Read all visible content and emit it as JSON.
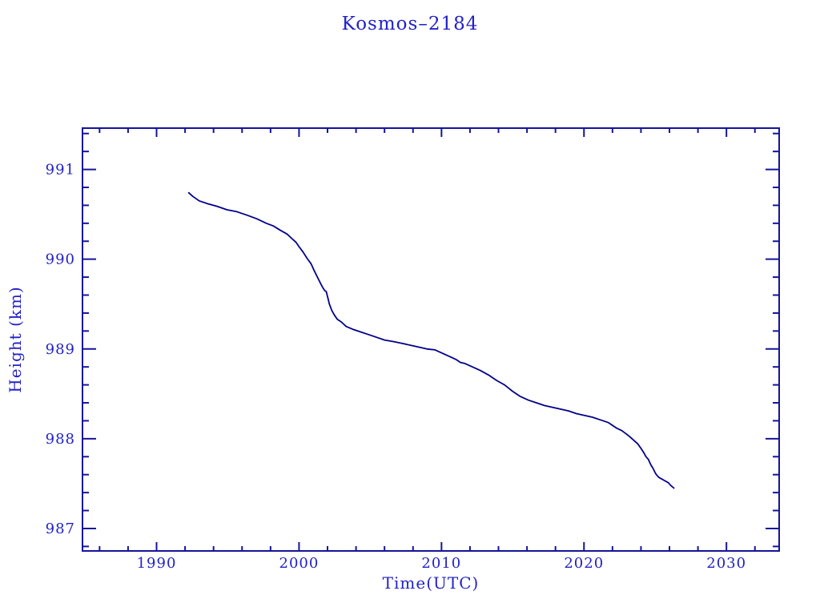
{
  "page": {
    "background": "#ffffff"
  },
  "chart_data": {
    "type": "line",
    "title": "Kosmos–2184",
    "xlabel": "Time(UTC)",
    "ylabel": "Height (km)",
    "xlim": [
      1984.8,
      2033.7
    ],
    "ylim": [
      986.75,
      991.46
    ],
    "x_major_ticks": [
      1990,
      2000,
      2010,
      2020,
      2030
    ],
    "x_minor_step": 2,
    "y_major_ticks": [
      987,
      988,
      989,
      990,
      991
    ],
    "y_minor_step": 0.2,
    "grid": false,
    "legend_position": "none",
    "colors": {
      "curve": "#00008b",
      "axis": "#14149a",
      "text": "#2222c8"
    },
    "series": [
      {
        "name": "orbital-height",
        "points": [
          [
            1992.26,
            990.74
          ],
          [
            1992.54,
            990.7
          ],
          [
            1992.99,
            990.65
          ],
          [
            1993.55,
            990.62
          ],
          [
            1994.22,
            990.59
          ],
          [
            1994.95,
            990.55
          ],
          [
            1995.62,
            990.53
          ],
          [
            1996.35,
            990.49
          ],
          [
            1997.03,
            990.45
          ],
          [
            1997.7,
            990.4
          ],
          [
            1998.2,
            990.37
          ],
          [
            1998.71,
            990.32
          ],
          [
            1999.16,
            990.28
          ],
          [
            1999.5,
            990.23
          ],
          [
            1999.78,
            990.19
          ],
          [
            2000.0,
            990.14
          ],
          [
            2000.28,
            990.08
          ],
          [
            2000.56,
            990.01
          ],
          [
            2000.84,
            989.95
          ],
          [
            2001.07,
            989.87
          ],
          [
            2001.29,
            989.8
          ],
          [
            2001.51,
            989.73
          ],
          [
            2001.68,
            989.68
          ],
          [
            2001.8,
            989.65
          ],
          [
            2001.91,
            989.64
          ],
          [
            2002.02,
            989.57
          ],
          [
            2002.13,
            989.5
          ],
          [
            2002.3,
            989.43
          ],
          [
            2002.47,
            989.38
          ],
          [
            2002.69,
            989.33
          ],
          [
            2002.97,
            989.3
          ],
          [
            2003.31,
            989.25
          ],
          [
            2003.76,
            989.22
          ],
          [
            2004.32,
            989.19
          ],
          [
            2004.88,
            989.16
          ],
          [
            2005.44,
            989.13
          ],
          [
            2006.0,
            989.1
          ],
          [
            2006.68,
            989.08
          ],
          [
            2007.29,
            989.06
          ],
          [
            2007.85,
            989.04
          ],
          [
            2008.42,
            989.02
          ],
          [
            2008.98,
            989.0
          ],
          [
            2009.54,
            988.99
          ],
          [
            2010.1,
            988.95
          ],
          [
            2010.66,
            988.91
          ],
          [
            2011.05,
            988.88
          ],
          [
            2011.33,
            988.85
          ],
          [
            2011.61,
            988.84
          ],
          [
            2012.17,
            988.8
          ],
          [
            2012.73,
            988.76
          ],
          [
            2013.3,
            988.71
          ],
          [
            2013.86,
            988.65
          ],
          [
            2014.42,
            988.6
          ],
          [
            2014.98,
            988.53
          ],
          [
            2015.54,
            988.47
          ],
          [
            2016.1,
            988.43
          ],
          [
            2016.66,
            988.4
          ],
          [
            2017.22,
            988.37
          ],
          [
            2017.78,
            988.35
          ],
          [
            2018.35,
            988.33
          ],
          [
            2018.91,
            988.31
          ],
          [
            2019.47,
            988.28
          ],
          [
            2020.03,
            988.26
          ],
          [
            2020.59,
            988.24
          ],
          [
            2021.15,
            988.21
          ],
          [
            2021.71,
            988.18
          ],
          [
            2022.27,
            988.12
          ],
          [
            2022.66,
            988.09
          ],
          [
            2023.0,
            988.05
          ],
          [
            2023.23,
            988.02
          ],
          [
            2023.51,
            987.98
          ],
          [
            2023.79,
            987.94
          ],
          [
            2024.01,
            987.89
          ],
          [
            2024.18,
            987.85
          ],
          [
            2024.35,
            987.8
          ],
          [
            2024.52,
            987.77
          ],
          [
            2024.69,
            987.71
          ],
          [
            2024.85,
            987.67
          ],
          [
            2024.97,
            987.63
          ],
          [
            2025.08,
            987.6
          ],
          [
            2025.25,
            987.57
          ],
          [
            2025.47,
            987.55
          ],
          [
            2025.7,
            987.53
          ],
          [
            2025.92,
            987.51
          ],
          [
            2026.09,
            987.48
          ],
          [
            2026.31,
            987.45
          ]
        ]
      }
    ]
  }
}
